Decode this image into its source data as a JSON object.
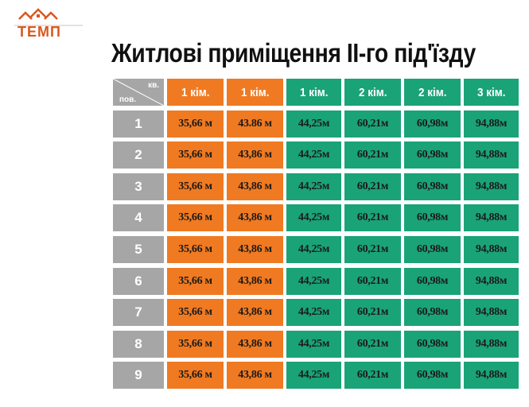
{
  "logo": {
    "text": "ТЕМП",
    "icon": "house-roofs-icon"
  },
  "title": "Житлові приміщення ІІ-го під'їзду",
  "table": {
    "corner": {
      "top": "кв.",
      "bottom": "пов."
    },
    "headers": [
      "1 кім.",
      "1  кім.",
      "1 кім.",
      "2 кім.",
      "2 кім.",
      "3 кім."
    ],
    "rows": [
      {
        "floor": "1",
        "values": [
          "35,66 м",
          "43.86 м",
          "44,25м",
          "60,21м",
          "60,98м",
          "94,88м"
        ]
      },
      {
        "floor": "2",
        "values": [
          "35,66 м",
          "43,86 м",
          "44,25м",
          "60,21м",
          "60,98м",
          "94,88м"
        ]
      },
      {
        "floor": "3",
        "values": [
          "35,66 м",
          "43,86 м",
          "44,25м",
          "60,21м",
          "60,98м",
          "94,88м"
        ]
      },
      {
        "floor": "4",
        "values": [
          "35,66 м",
          "43,86 м",
          "44,25м",
          "60,21м",
          "60,98м",
          "94,88м"
        ]
      },
      {
        "floor": "5",
        "values": [
          "35,66 м",
          "43,86 м",
          "44,25м",
          "60,21м",
          "60,98м",
          "94,88м"
        ]
      },
      {
        "floor": "6",
        "values": [
          "35,66 м",
          "43,86 м",
          "44,25м",
          "60,21м",
          "60,98м",
          "94,88м"
        ]
      },
      {
        "floor": "7",
        "values": [
          "35,66 м",
          "43,86 м",
          "44,25м",
          "60,21м",
          "60,98м",
          "94,88м"
        ]
      },
      {
        "floor": "8",
        "values": [
          "35,66 м",
          "43,86 м",
          "44,25м",
          "60,21м",
          "60,98м",
          "94,88м"
        ]
      },
      {
        "floor": "9",
        "values": [
          "35,66 м",
          "43,86 м",
          "44,25м",
          "60,21м",
          "60,98м",
          "94,88м"
        ]
      }
    ]
  },
  "colors": {
    "orange": "#f07a22",
    "green": "#1aa377",
    "gray": "#a6a6a6",
    "logo": "#d8581e"
  }
}
